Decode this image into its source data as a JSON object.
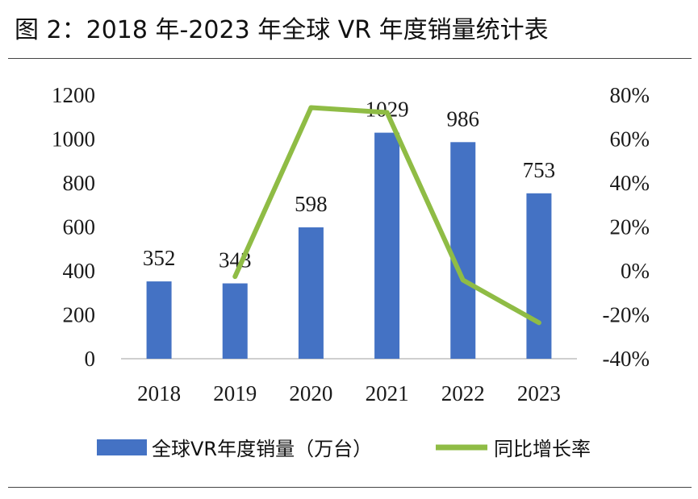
{
  "title": "图 2：2018 年-2023 年全球 VR 年度销量统计表",
  "chart_data": {
    "type": "bar+line",
    "title": "图 2：2018 年-2023 年全球 VR 年度销量统计表",
    "categories": [
      "2018",
      "2019",
      "2020",
      "2021",
      "2022",
      "2023"
    ],
    "series": [
      {
        "name": "全球VR年度销量（万台）",
        "type": "bar",
        "axis": "left",
        "color": "#4472C4",
        "values": [
          352,
          343,
          598,
          1029,
          986,
          753
        ],
        "labels": [
          "352",
          "343",
          "598",
          "1029",
          "986",
          "753"
        ]
      },
      {
        "name": "同比增长率",
        "type": "line",
        "axis": "right",
        "color": "#8FBC45",
        "values": [
          null,
          -2.6,
          74.3,
          72.1,
          -4.2,
          -23.6
        ]
      }
    ],
    "left_axis": {
      "ylim": [
        0,
        1200
      ],
      "ticks": [
        "0",
        "200",
        "400",
        "600",
        "800",
        "1000",
        "1200"
      ]
    },
    "right_axis": {
      "ylim": [
        -40,
        80
      ],
      "ticks": [
        "-40%",
        "-20%",
        "0%",
        "20%",
        "40%",
        "60%",
        "80%"
      ]
    },
    "legend": {
      "position": "bottom"
    }
  }
}
